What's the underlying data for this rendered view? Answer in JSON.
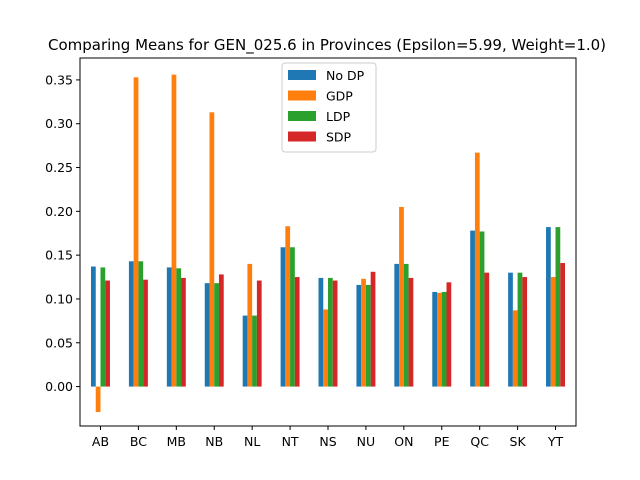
{
  "chart_data": {
    "type": "bar",
    "title": "Comparing Means for GEN_025.6 in Provinces (Epsilon=5.99, Weight=1.0)",
    "xlabel": "",
    "ylabel": "",
    "categories": [
      "AB",
      "BC",
      "MB",
      "NB",
      "NL",
      "NT",
      "NS",
      "NU",
      "ON",
      "PE",
      "QC",
      "SK",
      "YT"
    ],
    "series": [
      {
        "name": "No DP",
        "color": "#1f77b4",
        "values": [
          0.137,
          0.143,
          0.136,
          0.118,
          0.081,
          0.159,
          0.124,
          0.116,
          0.14,
          0.108,
          0.178,
          0.13,
          0.182
        ]
      },
      {
        "name": "GDP",
        "color": "#ff7f0e",
        "values": [
          -0.029,
          0.353,
          0.356,
          0.313,
          0.14,
          0.183,
          0.088,
          0.123,
          0.205,
          0.107,
          0.267,
          0.087,
          0.125
        ]
      },
      {
        "name": "LDP",
        "color": "#2ca02c",
        "values": [
          0.136,
          0.143,
          0.135,
          0.118,
          0.081,
          0.159,
          0.124,
          0.116,
          0.14,
          0.108,
          0.177,
          0.13,
          0.182
        ]
      },
      {
        "name": "SDP",
        "color": "#d62728",
        "values": [
          0.121,
          0.122,
          0.124,
          0.128,
          0.121,
          0.125,
          0.121,
          0.131,
          0.124,
          0.119,
          0.13,
          0.125,
          0.141
        ]
      }
    ],
    "ylim": [
      -0.045,
      0.375
    ],
    "yticks": [
      0.0,
      0.05,
      0.1,
      0.15,
      0.2,
      0.25,
      0.3,
      0.35
    ],
    "ytick_labels": [
      "0.00",
      "0.05",
      "0.10",
      "0.15",
      "0.20",
      "0.25",
      "0.30",
      "0.35"
    ],
    "grid": false,
    "legend_position": "top-center"
  }
}
